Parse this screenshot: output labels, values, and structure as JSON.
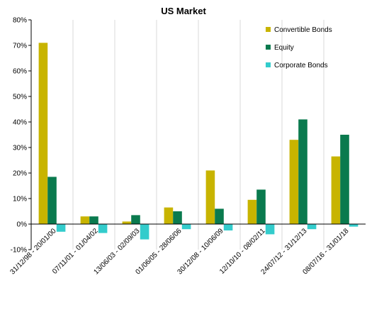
{
  "chart_data": {
    "type": "bar",
    "title": "US Market",
    "xlabel": "",
    "ylabel": "",
    "ylim": [
      -0.1,
      0.8
    ],
    "ytick_step": 0.1,
    "ytick_labels": [
      "-10%",
      "0%",
      "10%",
      "20%",
      "30%",
      "40%",
      "50%",
      "60%",
      "70%",
      "80%"
    ],
    "grid": "vertical separators between categories",
    "legend_position": "top-right",
    "categories": [
      "31/12/98 - 20/01/00",
      "07/11/01 - 01/04/02",
      "13/06/03 - 02/09/03",
      "01/06/05 - 28/06/06",
      "30/12/08 - 10/06/09",
      "12/10/10 - 08/02/11",
      "24/07/12 - 31/12/13",
      "08/07/16 - 31/01/18"
    ],
    "series": [
      {
        "name": "Convertible Bonds",
        "color": "#c8b400",
        "values": [
          0.71,
          0.03,
          0.01,
          0.065,
          0.21,
          0.095,
          0.33,
          0.265
        ]
      },
      {
        "name": "Equity",
        "color": "#0a7a4e",
        "values": [
          0.185,
          0.03,
          0.035,
          0.05,
          0.06,
          0.135,
          0.41,
          0.35
        ]
      },
      {
        "name": "Corporate Bonds",
        "color": "#33cccc",
        "values": [
          -0.03,
          -0.035,
          -0.06,
          -0.02,
          -0.025,
          -0.04,
          -0.02,
          -0.01
        ]
      }
    ]
  }
}
